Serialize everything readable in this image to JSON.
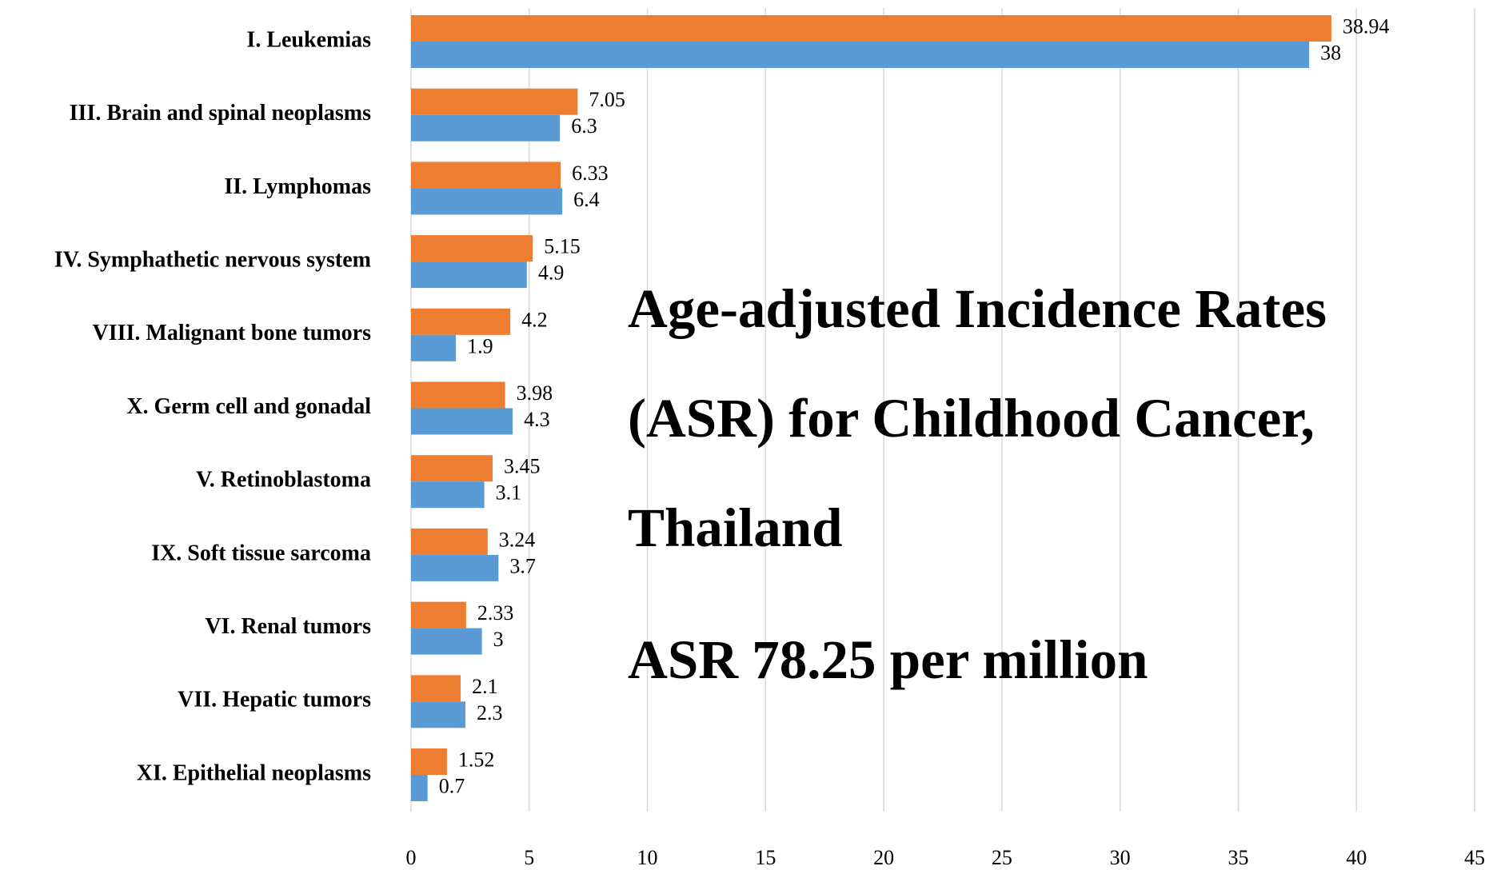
{
  "chart_data": {
    "type": "hbar",
    "title": "Age-adjusted Incidence Rates (ASR) for Childhood Cancer, Thailand",
    "annotation": "ASR 78.25 per million",
    "categories": [
      "I. Leukemias",
      "III. Brain and spinal neoplasms",
      "II. Lymphomas",
      "IV. Symphathetic nervous system",
      "VIII. Malignant bone tumors",
      "X. Germ cell and gonadal",
      "V. Retinoblastoma",
      "IX. Soft tissue sarcoma",
      "VI. Renal tumors",
      "VII. Hepatic tumors",
      "XI. Epithelial neoplasms"
    ],
    "series": [
      {
        "color": "#ed7d31",
        "values": [
          38.94,
          7.05,
          6.33,
          5.15,
          4.2,
          3.98,
          3.45,
          3.24,
          2.33,
          2.1,
          1.52
        ]
      },
      {
        "color": "#5b9bd5",
        "values": [
          38,
          6.3,
          6.4,
          4.9,
          1.9,
          4.3,
          3.1,
          3.7,
          3,
          2.3,
          0.7
        ]
      }
    ],
    "xlim": [
      0,
      45
    ],
    "xticks": [
      0,
      5,
      10,
      15,
      20,
      25,
      30,
      35,
      40,
      45
    ],
    "grid": true
  }
}
